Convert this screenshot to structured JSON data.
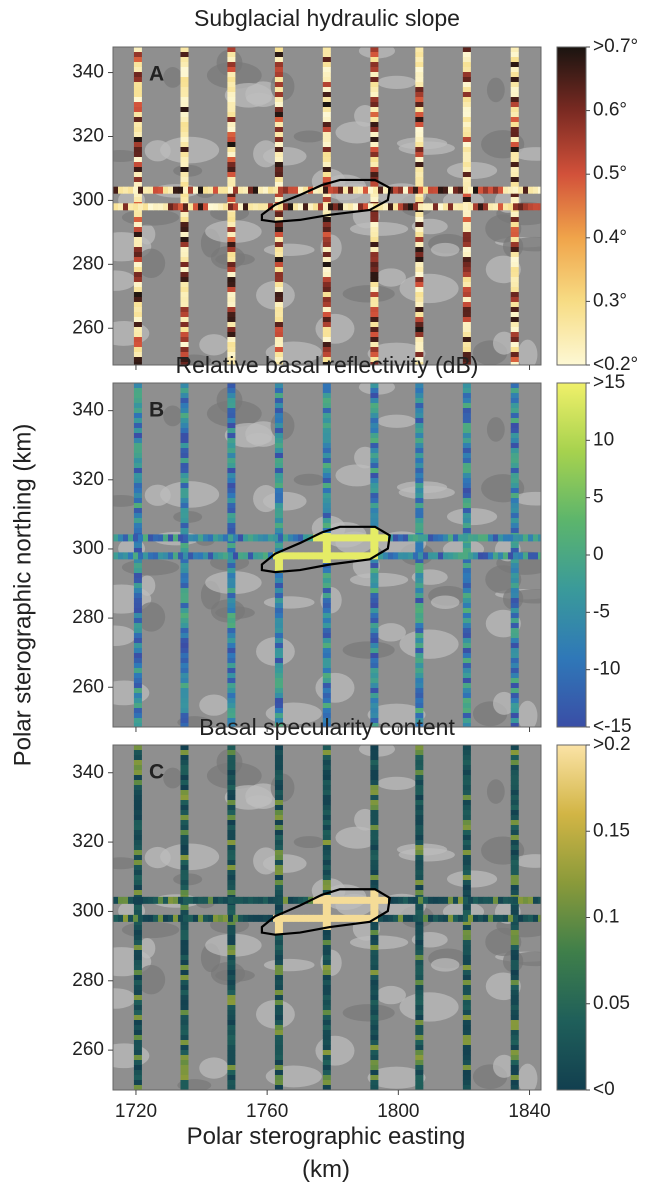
{
  "shared": {
    "y_label": "Polar sterographic northing (km)",
    "x_label": "Polar sterographic easting (km)"
  },
  "chart_data": [
    {
      "type": "map",
      "title": "Subglacial hydraulic slope",
      "panel_label": "A",
      "xlim": [
        1713,
        1843.5
      ],
      "ylim": [
        248.5,
        348
      ],
      "xticks": [
        1720,
        1760,
        1800,
        1840
      ],
      "yticks": [
        260,
        280,
        300,
        320,
        340
      ],
      "tracks_x": [
        1720.6,
        1734.8,
        1749.1,
        1763.6,
        1778.2,
        1792.7,
        1806.4,
        1820.9,
        1835.5
      ],
      "tracks_y": [
        303.2,
        298.0
      ],
      "outline": {
        "x": [
          1758.4,
          1762.4,
          1770.0,
          1776.7,
          1782.2,
          1792.9,
          1797.4,
          1796.8,
          1791.3,
          1779.1,
          1770.0,
          1762.4,
          1758.4
        ],
        "y": [
          295.5,
          298.6,
          301.7,
          304.8,
          306.4,
          306.4,
          303.9,
          300.1,
          297.0,
          295.5,
          293.9,
          293.3,
          293.9
        ]
      },
      "colormap": [
        "#fdf8d4",
        "#f7dc84",
        "#f0a44a",
        "#d2513a",
        "#7a2a22",
        "#1a1410"
      ],
      "clim": [
        0.2,
        0.7
      ],
      "cticks": [
        {
          "value": 0.7,
          "label": ">0.7°"
        },
        {
          "value": 0.6,
          "label": "0.6°"
        },
        {
          "value": 0.5,
          "label": "0.5°"
        },
        {
          "value": 0.4,
          "label": "0.4°"
        },
        {
          "value": 0.3,
          "label": "0.3°"
        },
        {
          "value": 0.2,
          "label": "<0.2°"
        }
      ]
    },
    {
      "type": "map",
      "title": "Relative basal reflectivity (dB)",
      "panel_label": "B",
      "xlim": [
        1713,
        1843.5
      ],
      "ylim": [
        248.5,
        348
      ],
      "xticks": [
        1720,
        1760,
        1800,
        1840
      ],
      "yticks": [
        260,
        280,
        300,
        320,
        340
      ],
      "tracks_x": [
        1720.6,
        1734.8,
        1749.1,
        1763.6,
        1778.2,
        1792.7,
        1806.4,
        1820.9,
        1835.5
      ],
      "tracks_y": [
        303.2,
        298.0
      ],
      "outline": {
        "x": [
          1758.4,
          1762.4,
          1770.0,
          1776.7,
          1782.2,
          1792.9,
          1797.4,
          1796.8,
          1791.3,
          1779.1,
          1770.0,
          1762.4,
          1758.4
        ],
        "y": [
          295.5,
          298.6,
          301.7,
          304.8,
          306.4,
          306.4,
          303.9,
          300.1,
          297.0,
          295.5,
          293.9,
          293.3,
          293.9
        ]
      },
      "colormap": [
        "#3a4ea6",
        "#2f78b8",
        "#3a9a9a",
        "#5cb56c",
        "#a6d24e",
        "#f0f06a"
      ],
      "clim": [
        -15,
        15
      ],
      "cticks": [
        {
          "value": 15,
          "label": ">15"
        },
        10,
        5,
        0,
        -5,
        -10,
        {
          "value": -15,
          "label": "<-15"
        }
      ]
    },
    {
      "type": "map",
      "title": "Basal specularity content",
      "panel_label": "C",
      "xlim": [
        1713,
        1843.5
      ],
      "ylim": [
        248.5,
        348
      ],
      "xticks": [
        1720,
        1760,
        1800,
        1840
      ],
      "yticks": [
        260,
        280,
        300,
        320,
        340
      ],
      "tracks_x": [
        1720.6,
        1734.8,
        1749.1,
        1763.6,
        1778.2,
        1792.7,
        1806.4,
        1820.9,
        1835.5
      ],
      "tracks_y": [
        303.2,
        298.0
      ],
      "outline": {
        "x": [
          1758.4,
          1762.4,
          1770.0,
          1776.7,
          1782.2,
          1792.9,
          1797.4,
          1796.8,
          1791.3,
          1779.1,
          1770.0,
          1762.4,
          1758.4
        ],
        "y": [
          295.5,
          298.6,
          301.7,
          304.8,
          306.4,
          306.4,
          303.9,
          300.1,
          297.0,
          295.5,
          293.9,
          293.3,
          293.9
        ]
      },
      "colormap": [
        "#123f4f",
        "#1f5f5a",
        "#3f7f4a",
        "#8a9a3a",
        "#d2b545",
        "#fbe3a6"
      ],
      "clim": [
        0,
        0.2
      ],
      "cticks": [
        {
          "value": 0.2,
          "label": ">0.2"
        },
        0.15,
        0.1,
        0.05,
        {
          "value": 0,
          "label": "<0"
        }
      ]
    }
  ]
}
